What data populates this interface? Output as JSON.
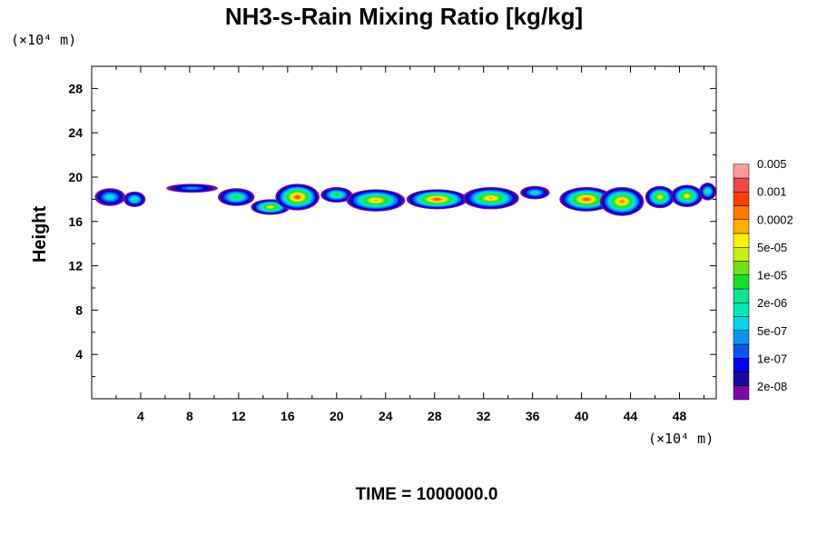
{
  "chart_data": {
    "type": "heatmap",
    "title": "NH3-s-Rain Mixing Ratio [kg/kg]",
    "ylabel": "Height",
    "x_unit": "(×10⁴ m)",
    "y_unit": "(×10⁴ m)",
    "xlim": [
      0,
      51
    ],
    "ylim": [
      0,
      30
    ],
    "x_ticks": [
      4,
      8,
      12,
      16,
      20,
      24,
      28,
      32,
      36,
      40,
      44,
      48
    ],
    "y_ticks": [
      4,
      8,
      12,
      16,
      20,
      24,
      28
    ],
    "colorbar": {
      "labels": [
        "0.005",
        "0.001",
        "0.0002",
        "5e-05",
        "1e-05",
        "2e-06",
        "5e-07",
        "1e-07",
        "2e-08"
      ],
      "colors_bottom_to_top": [
        "#7a0aa8",
        "#1a0a9a",
        "#0000ee",
        "#0a55f0",
        "#0a96f0",
        "#08d2e8",
        "#08e6b4",
        "#10e690",
        "#14e02a",
        "#70e01a",
        "#c8f014",
        "#fff00a",
        "#ffb000",
        "#ff7a00",
        "#ff4000",
        "#f04848",
        "#ff9a9a"
      ]
    },
    "blobs": [
      {
        "x": 1.5,
        "y": 18.2,
        "w": 2.5,
        "h": 1.6,
        "level": 6
      },
      {
        "x": 3.5,
        "y": 18.0,
        "w": 1.8,
        "h": 1.4,
        "level": 7
      },
      {
        "x": 8.2,
        "y": 19.0,
        "w": 4.2,
        "h": 0.8,
        "level": 4
      },
      {
        "x": 11.8,
        "y": 18.2,
        "w": 3.0,
        "h": 1.6,
        "level": 8
      },
      {
        "x": 14.6,
        "y": 17.3,
        "w": 3.2,
        "h": 1.4,
        "level": 11
      },
      {
        "x": 16.8,
        "y": 18.2,
        "w": 3.6,
        "h": 2.4,
        "level": 14
      },
      {
        "x": 20.0,
        "y": 18.4,
        "w": 2.6,
        "h": 1.4,
        "level": 8
      },
      {
        "x": 23.2,
        "y": 17.9,
        "w": 4.8,
        "h": 2.0,
        "level": 12
      },
      {
        "x": 28.2,
        "y": 18.0,
        "w": 5.0,
        "h": 1.8,
        "level": 14
      },
      {
        "x": 32.6,
        "y": 18.1,
        "w": 4.6,
        "h": 2.0,
        "level": 12
      },
      {
        "x": 36.2,
        "y": 18.6,
        "w": 2.4,
        "h": 1.2,
        "level": 6
      },
      {
        "x": 40.4,
        "y": 18.0,
        "w": 4.4,
        "h": 2.2,
        "level": 14
      },
      {
        "x": 43.3,
        "y": 17.8,
        "w": 3.6,
        "h": 2.6,
        "level": 13
      },
      {
        "x": 46.4,
        "y": 18.2,
        "w": 2.4,
        "h": 2.0,
        "level": 11
      },
      {
        "x": 48.6,
        "y": 18.3,
        "w": 2.6,
        "h": 2.0,
        "level": 11
      },
      {
        "x": 50.3,
        "y": 18.7,
        "w": 1.4,
        "h": 1.6,
        "level": 7
      }
    ]
  },
  "time_label": "TIME = 1000000.0"
}
